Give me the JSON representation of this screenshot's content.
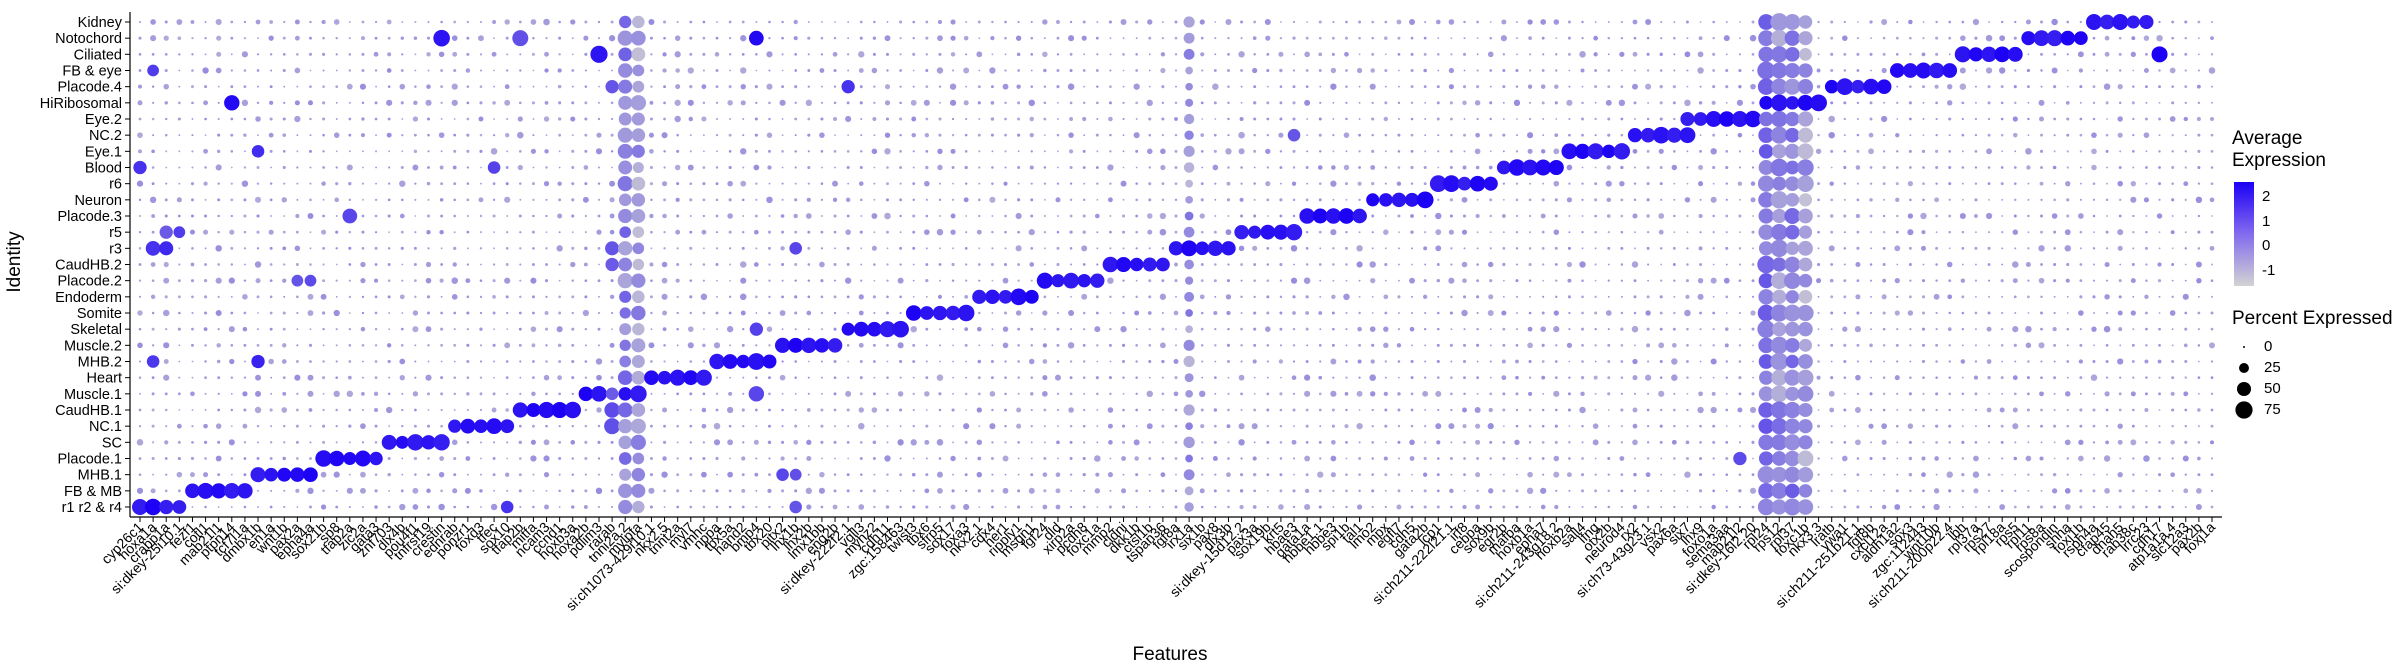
{
  "chart_data": {
    "type": "dotplot",
    "xlabel": "Features",
    "ylabel": "Identity",
    "y_categories": [
      "Kidney",
      "Notochord",
      "Ciliated",
      "FB & eye",
      "Placode.4",
      "HiRibosomal",
      "Eye.2",
      "NC.2",
      "Eye.1",
      "Blood",
      "r6",
      "Neuron",
      "Placode.3",
      "r5",
      "r3",
      "CaudHB.2",
      "Placode.2",
      "Endoderm",
      "Somite",
      "Skeletal",
      "Muscle.2",
      "MHB.2",
      "Heart",
      "Muscle.1",
      "CaudHB.1",
      "NC.1",
      "SC",
      "Placode.1",
      "MHB.1",
      "FB & MB",
      "r1 r2 & r4"
    ],
    "x_labels": [
      "cyp26c1",
      "hoxa1a",
      "crabp1a",
      "si:dkey-25i10.1",
      "fezf1",
      "cotl1",
      "mab21l1",
      "ptpn14",
      "tcf7l1a",
      "dmbx1b",
      "en1a",
      "wnt1b",
      "pax2a",
      "epha4a",
      "sox21b",
      "sp8",
      "tfap2a",
      "zic2a",
      "gata3",
      "znf703",
      "dlx4b",
      "pou4f1",
      "tnfrsf19",
      "crestin",
      "ednrab",
      "ponzr1",
      "foxd3",
      "tfec",
      "sox10",
      "tfap2b",
      "mitfa",
      "ncam3",
      "ccnd1",
      "hoxb3a",
      "hoxa2b",
      "pdlim3",
      "rarab",
      "tnni2a.2",
      "mylpfa",
      "si:ch1073-429i10.1",
      "nkx2.5",
      "tnnt2a",
      "myl7",
      "vmhc",
      "nppa",
      "tbx5a",
      "hand2",
      "bmp4",
      "tbx20",
      "pitx2",
      "lhx1b",
      "lhx2b",
      "lmx1bb",
      "eng2b",
      "si:dkey-222f2.1",
      "vgll3",
      "myhz2",
      "cdh11",
      "zgc:158463",
      "twist3",
      "tbx6",
      "sfrp5",
      "sox17",
      "foxa3",
      "nkx2.1",
      "cdx4",
      "her1",
      "ripply1",
      "msgn1",
      "fgf24",
      "dld",
      "xirp2a",
      "pcdh8",
      "foxc1a",
      "mmp2",
      "cldni",
      "dkk1b",
      "ctsl1b",
      "tspan36",
      "fgf8a",
      "irx1a",
      "six1b",
      "pax8",
      "dlx3b",
      "si:dkey-15d12.2",
      "pax3a",
      "sox19b",
      "krt5",
      "hbae3",
      "gata1a",
      "hbbe1.1",
      "hbbe3",
      "spi1b",
      "tal1",
      "lmo2",
      "mpx",
      "egfl7",
      "cdh5",
      "gata2b",
      "lcp1",
      "si:ch211-222l21.1",
      "irf8",
      "cebpa",
      "sox9b",
      "egr2b",
      "mafba",
      "hoxb1a",
      "epha7",
      "si:ch211-243g18.2",
      "hoxb2a",
      "sall4",
      "lfng",
      "otx2b",
      "neurod4",
      "rx2",
      "si:ch73-43g23.1",
      "vsx2",
      "pax6a",
      "six7",
      "lhx9",
      "foxo1a",
      "sema3aa",
      "mab21l2",
      "si:dkey-16l2.20",
      "rpl24",
      "rps12",
      "rpl37",
      "foxc1b",
      "nkx3.3",
      "lratb",
      "vwa1",
      "si:ch211-251b21.1",
      "fgf8b",
      "cxcl12a",
      "aldh1a2",
      "sox3",
      "zgc:112443",
      "wnt10b",
      "si:ch211-200p22.4",
      "lbh",
      "rpl37a",
      "rps27",
      "rpl18a",
      "rps5",
      "rpl11",
      "rps8a",
      "scospondin",
      "shha",
      "foxj1b",
      "rsph4a",
      "cfap45",
      "dnah5",
      "rab38c",
      "lrrc23",
      "cdh17",
      "atp1a1a.4",
      "slc12a3",
      "pax2b",
      "foxj1a"
    ],
    "size_legend": [
      0,
      25,
      50,
      75
    ],
    "color_ticks": [
      2,
      1,
      0,
      -1
    ],
    "color_range": [
      -1.6,
      2.6
    ],
    "color_low": "#D3D3D3",
    "color_high": "#1B00F5",
    "diagonal_segments": [
      {
        "row": "r1 r2 & r4",
        "cols": [
          0,
          1,
          2,
          3
        ]
      },
      {
        "row": "FB & MB",
        "cols": [
          4,
          5,
          6,
          7,
          8
        ]
      },
      {
        "row": "MHB.1",
        "cols": [
          9,
          10,
          11,
          12,
          13
        ]
      },
      {
        "row": "Placode.1",
        "cols": [
          14,
          15,
          16,
          17,
          18
        ]
      },
      {
        "row": "SC",
        "cols": [
          19,
          20,
          21,
          22,
          23
        ]
      },
      {
        "row": "NC.1",
        "cols": [
          24,
          25,
          26,
          27,
          28
        ]
      },
      {
        "row": "CaudHB.1",
        "cols": [
          29,
          30,
          31,
          32,
          33
        ]
      },
      {
        "row": "Muscle.1",
        "cols": [
          34,
          35,
          36,
          37,
          38
        ]
      },
      {
        "row": "Heart",
        "cols": [
          39,
          40,
          41,
          42,
          43
        ]
      },
      {
        "row": "MHB.2",
        "cols": [
          44,
          45,
          46,
          47,
          48
        ]
      },
      {
        "row": "Muscle.2",
        "cols": [
          49,
          50,
          51,
          52,
          53
        ]
      },
      {
        "row": "Skeletal",
        "cols": [
          54,
          55,
          56,
          57,
          58
        ]
      },
      {
        "row": "Somite",
        "cols": [
          59,
          60,
          61,
          62,
          63
        ]
      },
      {
        "row": "Endoderm",
        "cols": [
          64,
          65,
          66,
          67,
          68
        ]
      },
      {
        "row": "Placode.2",
        "cols": [
          69,
          70,
          71,
          72,
          73
        ]
      },
      {
        "row": "CaudHB.2",
        "cols": [
          74,
          75,
          76,
          77,
          78
        ]
      },
      {
        "row": "r3",
        "cols": [
          79,
          80,
          81,
          82,
          83
        ]
      },
      {
        "row": "r5",
        "cols": [
          84,
          85,
          86,
          87,
          88
        ]
      },
      {
        "row": "Placode.3",
        "cols": [
          89,
          90,
          91,
          92,
          93
        ]
      },
      {
        "row": "Neuron",
        "cols": [
          94,
          95,
          96,
          97,
          98
        ]
      },
      {
        "row": "r6",
        "cols": [
          99,
          100,
          101,
          102,
          103
        ]
      },
      {
        "row": "Blood",
        "cols": [
          104,
          105,
          106,
          107,
          108
        ]
      },
      {
        "row": "Eye.1",
        "cols": [
          109,
          110,
          111,
          112,
          113
        ]
      },
      {
        "row": "NC.2",
        "cols": [
          114,
          115,
          116,
          117,
          118
        ]
      },
      {
        "row": "Eye.2",
        "cols": [
          119,
          120,
          121,
          122,
          123
        ]
      },
      {
        "row": "HiRibosomal",
        "cols": [
          124,
          125,
          126,
          127,
          128
        ]
      },
      {
        "row": "Placode.4",
        "cols": [
          129,
          130,
          131,
          132,
          133
        ]
      },
      {
        "row": "FB & eye",
        "cols": [
          134,
          135,
          136,
          137,
          138
        ]
      },
      {
        "row": "Ciliated",
        "cols": [
          139,
          140,
          141,
          142,
          143
        ]
      },
      {
        "row": "Notochord",
        "cols": [
          144,
          145,
          146,
          147,
          148
        ]
      },
      {
        "row": "Kidney",
        "cols": [
          149,
          150,
          151,
          152,
          153
        ]
      }
    ],
    "broad_columns": [
      {
        "col": 37,
        "pct": 55,
        "avg": 0.0
      },
      {
        "col": 38,
        "pct": 55,
        "avg": -0.5
      },
      {
        "col": 80,
        "pct": 30,
        "avg": -0.4
      },
      {
        "col": 124,
        "pct": 75,
        "avg": 0.3
      },
      {
        "col": 125,
        "pct": 75,
        "avg": -0.2
      },
      {
        "col": 126,
        "pct": 70,
        "avg": 0.1
      },
      {
        "col": 127,
        "pct": 65,
        "avg": -0.6
      }
    ],
    "extra_points": [
      {
        "row": "Notochord",
        "col": 23,
        "pct": 70,
        "avg": 2.2
      },
      {
        "row": "Notochord",
        "col": 29,
        "pct": 65,
        "avg": 1.0
      },
      {
        "row": "Notochord",
        "col": 47,
        "pct": 55,
        "avg": 2.4
      },
      {
        "row": "Ciliated",
        "col": 35,
        "pct": 75,
        "avg": 2.2
      },
      {
        "row": "Ciliated",
        "col": 154,
        "pct": 65,
        "avg": 2.6
      },
      {
        "row": "FB & eye",
        "col": 1,
        "pct": 35,
        "avg": 1.4
      },
      {
        "row": "Placode.4",
        "col": 36,
        "pct": 45,
        "avg": 0.9
      },
      {
        "row": "Placode.4",
        "col": 54,
        "pct": 45,
        "avg": 1.6
      },
      {
        "row": "HiRibosomal",
        "col": 7,
        "pct": 60,
        "avg": 2.4
      },
      {
        "row": "Eye.2",
        "col": 118,
        "pct": 50,
        "avg": 2.0
      },
      {
        "row": "NC.2",
        "col": 88,
        "pct": 40,
        "avg": 0.9
      },
      {
        "row": "Eye.1",
        "col": 9,
        "pct": 40,
        "avg": 1.7
      },
      {
        "row": "Blood",
        "col": 0,
        "pct": 45,
        "avg": 1.6
      },
      {
        "row": "Blood",
        "col": 27,
        "pct": 40,
        "avg": 1.3
      },
      {
        "row": "Placode.3",
        "col": 16,
        "pct": 55,
        "avg": 1.2
      },
      {
        "row": "r5",
        "col": 2,
        "pct": 45,
        "avg": 0.8
      },
      {
        "row": "r5",
        "col": 3,
        "pct": 35,
        "avg": 1.4
      },
      {
        "row": "r3",
        "col": 1,
        "pct": 55,
        "avg": 1.6
      },
      {
        "row": "r3",
        "col": 2,
        "pct": 50,
        "avg": 1.8
      },
      {
        "row": "r3",
        "col": 36,
        "pct": 50,
        "avg": 0.9
      },
      {
        "row": "r3",
        "col": 50,
        "pct": 40,
        "avg": 1.2
      },
      {
        "row": "CaudHB.2",
        "col": 36,
        "pct": 45,
        "avg": 0.8
      },
      {
        "row": "Placode.2",
        "col": 12,
        "pct": 35,
        "avg": 0.9
      },
      {
        "row": "Placode.2",
        "col": 13,
        "pct": 35,
        "avg": 1.1
      },
      {
        "row": "Skeletal",
        "col": 47,
        "pct": 45,
        "avg": 1.3
      },
      {
        "row": "MHB.2",
        "col": 1,
        "pct": 40,
        "avg": 1.5
      },
      {
        "row": "MHB.2",
        "col": 9,
        "pct": 45,
        "avg": 1.9
      },
      {
        "row": "Muscle.1",
        "col": 47,
        "pct": 60,
        "avg": 1.2
      },
      {
        "row": "Muscle.1",
        "col": 36,
        "pct": 40,
        "avg": 0.8
      },
      {
        "row": "CaudHB.1",
        "col": 36,
        "pct": 60,
        "avg": 1.1
      },
      {
        "row": "NC.1",
        "col": 36,
        "pct": 65,
        "avg": 1.0
      },
      {
        "row": "MHB.1",
        "col": 49,
        "pct": 40,
        "avg": 1.2
      },
      {
        "row": "MHB.1",
        "col": 50,
        "pct": 35,
        "avg": 1.0
      },
      {
        "row": "Placode.1",
        "col": 122,
        "pct": 45,
        "avg": 1.1
      },
      {
        "row": "r1 r2 & r4",
        "col": 28,
        "pct": 40,
        "avg": 1.6
      },
      {
        "row": "r1 r2 & r4",
        "col": 50,
        "pct": 40,
        "avg": 0.9
      }
    ]
  }
}
